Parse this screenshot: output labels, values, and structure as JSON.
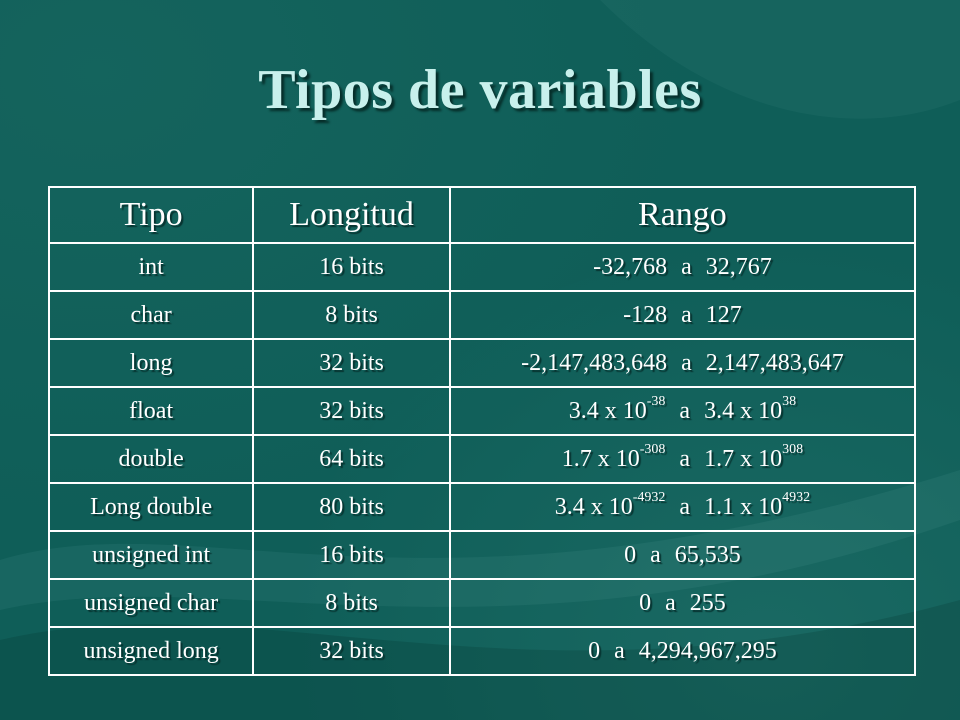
{
  "title": "Tipos de variables",
  "headers": {
    "tipo": "Tipo",
    "longitud": "Longitud",
    "rango": "Rango"
  },
  "rows": [
    {
      "tipo": "int",
      "longitud": "16 bits",
      "rango": {
        "min": "-32,768",
        "sep": "a",
        "max": "32,767"
      }
    },
    {
      "tipo": "char",
      "longitud": "8 bits",
      "rango": {
        "min": "-128",
        "sep": "a",
        "max": "127"
      }
    },
    {
      "tipo": "long",
      "longitud": "32 bits",
      "rango": {
        "min": "-2,147,483,648",
        "sep": "a",
        "max": "2,147,483,647"
      }
    },
    {
      "tipo": "float",
      "longitud": "32 bits",
      "rango": {
        "min_base": "3.4 x 10",
        "min_exp": "-38",
        "sep": "a",
        "max_base": "3.4 x 10",
        "max_exp": "38"
      }
    },
    {
      "tipo": "double",
      "longitud": "64 bits",
      "rango": {
        "min_base": "1.7 x 10",
        "min_exp": "-308",
        "sep": "a",
        "max_base": "1.7 x 10",
        "max_exp": "308"
      }
    },
    {
      "tipo": "Long double",
      "longitud": "80 bits",
      "rango": {
        "min_base": "3.4 x 10",
        "min_exp": "-4932",
        "sep": "a",
        "max_base": "1.1 x 10",
        "max_exp": "4932"
      }
    },
    {
      "tipo": "unsigned int",
      "longitud": "16 bits",
      "rango": {
        "min": "0",
        "sep": "a",
        "max": "65,535"
      }
    },
    {
      "tipo": "unsigned char",
      "longitud": "8 bits",
      "rango": {
        "min": "0",
        "sep": "a",
        "max": "255"
      }
    },
    {
      "tipo": "unsigned long",
      "longitud": "32 bits",
      "rango": {
        "min": "0",
        "sep": "a",
        "max": "4,294,967,295"
      }
    }
  ]
}
